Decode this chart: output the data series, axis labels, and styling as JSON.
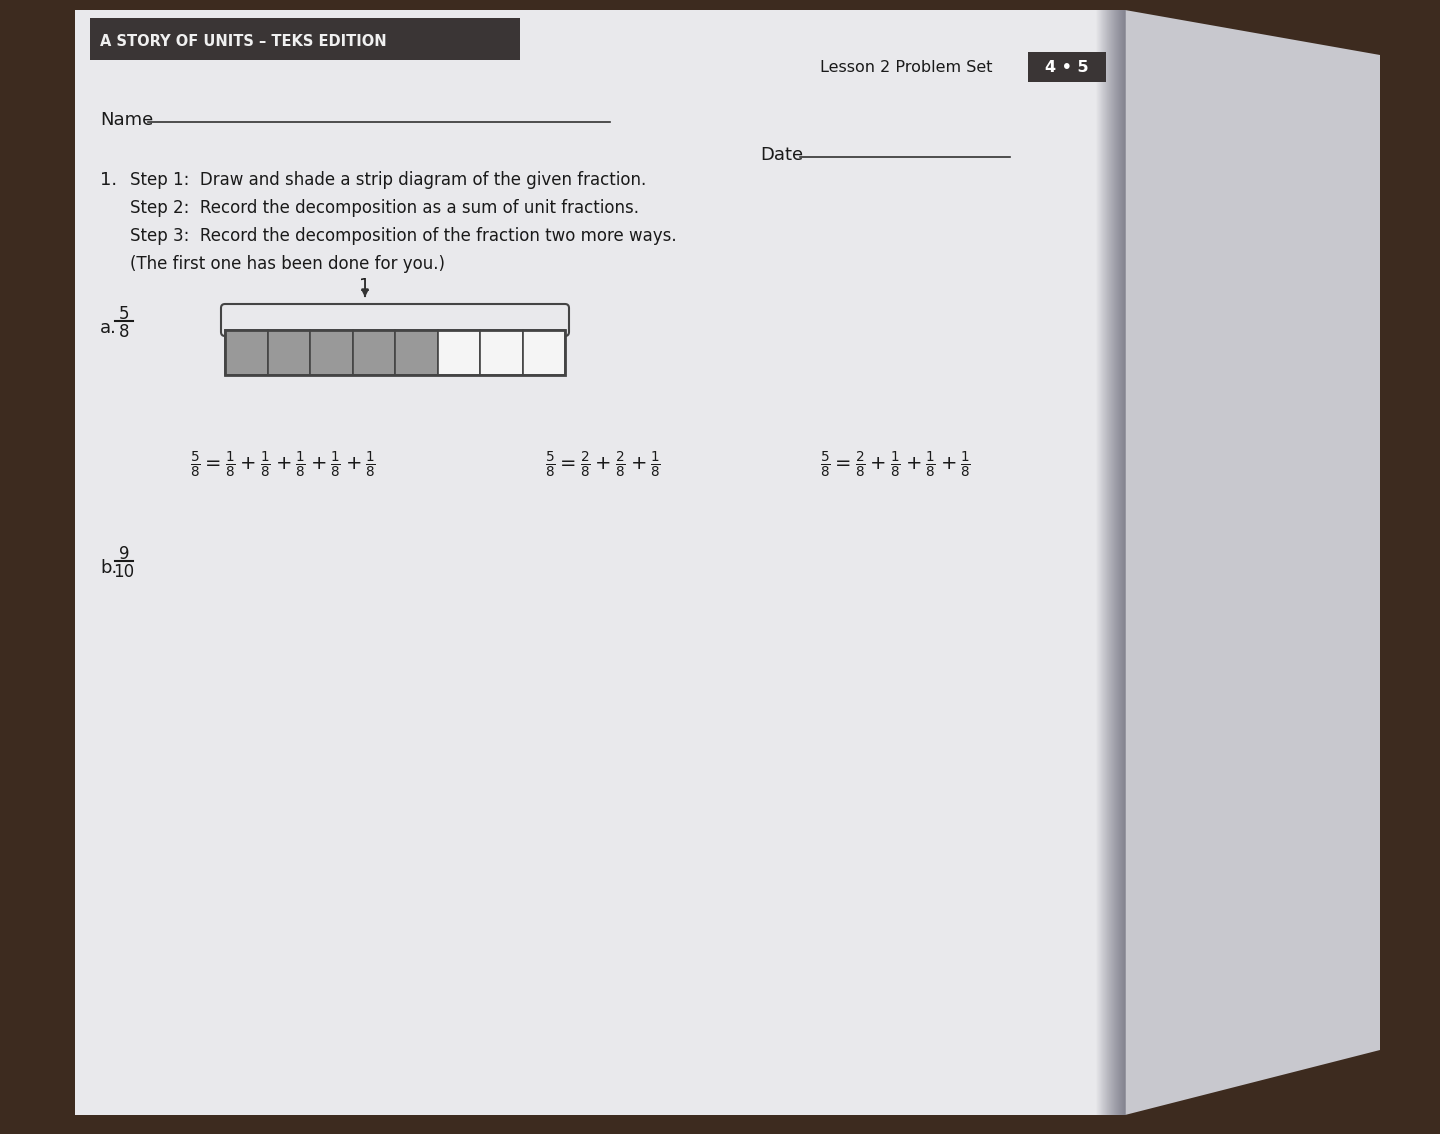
{
  "outer_bg": "#3d2b1f",
  "paper_color": "#e8e8eb",
  "paper_right_color": "#d0d0d5",
  "header_bg": "#3a3535",
  "header_text": "A STORY OF UNITS – TEKS EDITION",
  "header_text_color": "#f0f0f0",
  "lesson_text": "Lesson 2 Problem Set",
  "lesson_box_text": "4 • 5",
  "lesson_box_bg": "#3a3535",
  "lesson_box_text_color": "#ffffff",
  "title_number": "1.",
  "step1_text": "Step 1:  Draw and shade a strip diagram of the given fraction.",
  "step2_text": "Step 2:  Record the decomposition as a sum of unit fractions.",
  "step3_text": "Step 3:  Record the decomposition of the fraction two more ways.",
  "step4_text": "(The first one has been done for you.)",
  "part_a_label": "a.",
  "part_a_fraction_num": "5",
  "part_a_fraction_den": "8",
  "part_b_label": "b.",
  "part_b_fraction_num": "9",
  "part_b_fraction_den": "10",
  "strip_total_cells": 8,
  "strip_shaded_cells": 5,
  "strip_shaded_color": "#999999",
  "strip_unshaded_color": "#f5f5f5",
  "strip_border_color": "#444444",
  "name_label": "Name",
  "date_label": "Date",
  "text_color": "#1a1a1a"
}
